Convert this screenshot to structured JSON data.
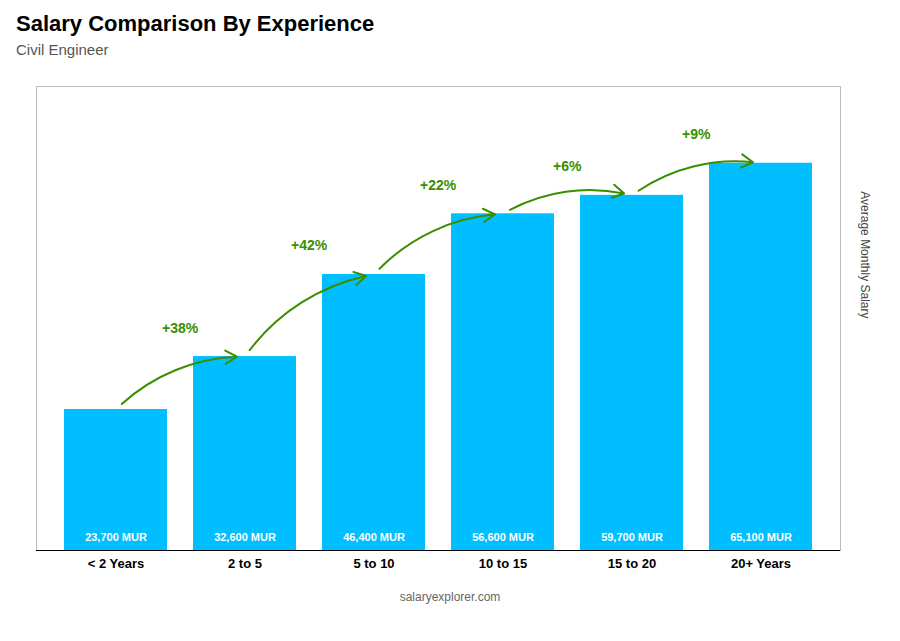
{
  "chart_data": {
    "type": "bar",
    "title": "Salary Comparison By Experience",
    "subtitle": "Civil Engineer",
    "ylabel": "Average Monthly Salary",
    "categories": [
      "< 2 Years",
      "2 to 5",
      "5 to 10",
      "10 to 15",
      "15 to 20",
      "20+ Years"
    ],
    "values": [
      23700,
      32600,
      46400,
      56600,
      59700,
      65100
    ],
    "value_labels": [
      "23,700 MUR",
      "32,600 MUR",
      "46,400 MUR",
      "56,600 MUR",
      "59,700 MUR",
      "65,100 MUR"
    ],
    "data_labels": true,
    "annotations": [
      "+38%",
      "+42%",
      "+22%",
      "+6%",
      "+9%"
    ],
    "caption": "salaryexplorer.com",
    "color": "#00BEFF",
    "ylim": [
      0,
      78000
    ],
    "tick_labels": "x",
    "grid": false
  }
}
